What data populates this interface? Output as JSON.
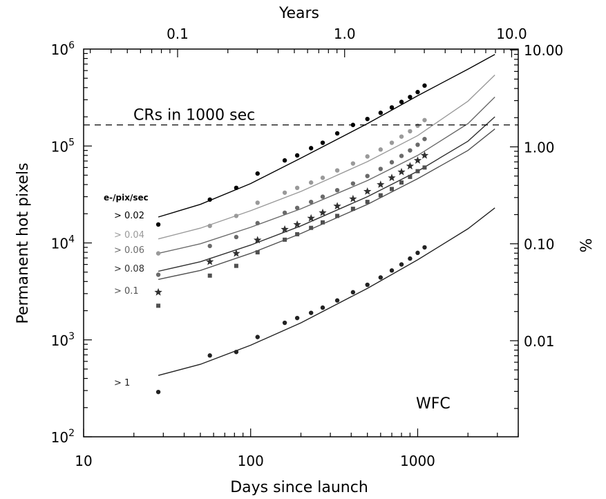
{
  "chart_data": {
    "type": "scatter",
    "title": "",
    "xlabel": "Days since launch",
    "ylabel": "Permanent hot pixels",
    "x2label": "Years",
    "y2label": "%",
    "xscale": "log",
    "yscale": "log",
    "xlim": [
      10,
      4000
    ],
    "ylim": [
      100,
      1000000
    ],
    "x_ticks": [
      {
        "value": 10,
        "label": "10"
      },
      {
        "value": 100,
        "label": "100"
      },
      {
        "value": 1000,
        "label": "1000"
      }
    ],
    "y_ticks": [
      {
        "value": 100,
        "base": "10",
        "exp": "2"
      },
      {
        "value": 1000,
        "base": "10",
        "exp": "3"
      },
      {
        "value": 10000,
        "base": "10",
        "exp": "4"
      },
      {
        "value": 100000,
        "base": "10",
        "exp": "5"
      },
      {
        "value": 1000000,
        "base": "10",
        "exp": "6"
      }
    ],
    "x2_ticks": [
      {
        "value": 0.1,
        "label": "0.1"
      },
      {
        "value": 1.0,
        "label": "1.0"
      },
      {
        "value": 10.0,
        "label": "10.0"
      }
    ],
    "y2_ticks": [
      {
        "value": 0.01,
        "label": "0.01"
      },
      {
        "value": 0.1,
        "label": "0.10"
      },
      {
        "value": 1.0,
        "label": "1.00"
      },
      {
        "value": 10.0,
        "label": "10.00"
      }
    ],
    "y2_to_y_factor": 98000,
    "x2_to_x_factor": 365.25,
    "grid": false,
    "legend_title": "e-/pix/sec",
    "legend_placement": "left",
    "annotation": "WFC",
    "reference_line": {
      "label": "CRs in 1000 sec",
      "y": 165000
    },
    "series": [
      {
        "name": "> 0.02",
        "color": "#000000",
        "marker": "circle",
        "points": [
          [
            28,
            15500
          ],
          [
            57,
            28000
          ],
          [
            82,
            37000
          ],
          [
            110,
            52000
          ],
          [
            160,
            71000
          ],
          [
            190,
            80000
          ],
          [
            230,
            95000
          ],
          [
            270,
            108000
          ],
          [
            330,
            135000
          ],
          [
            410,
            165000
          ],
          [
            500,
            190000
          ],
          [
            600,
            220000
          ],
          [
            700,
            250000
          ],
          [
            800,
            285000
          ],
          [
            900,
            320000
          ],
          [
            1000,
            360000
          ],
          [
            1100,
            420000
          ]
        ],
        "fit": [
          [
            28,
            18500
          ],
          [
            50,
            25000
          ],
          [
            100,
            41000
          ],
          [
            200,
            75000
          ],
          [
            500,
            170000
          ],
          [
            1000,
            330000
          ],
          [
            2000,
            620000
          ],
          [
            2900,
            880000
          ]
        ]
      },
      {
        "name": "> 0.04",
        "color": "#9a9a9a",
        "marker": "circle",
        "points": [
          [
            28,
            7800
          ],
          [
            57,
            15000
          ],
          [
            82,
            19000
          ],
          [
            110,
            26000
          ],
          [
            160,
            33000
          ],
          [
            190,
            37000
          ],
          [
            230,
            42000
          ],
          [
            270,
            47000
          ],
          [
            330,
            56000
          ],
          [
            410,
            66000
          ],
          [
            500,
            78000
          ],
          [
            600,
            92000
          ],
          [
            700,
            108000
          ],
          [
            800,
            125000
          ],
          [
            900,
            142000
          ],
          [
            1000,
            162000
          ],
          [
            1100,
            185000
          ]
        ],
        "fit": [
          [
            28,
            11000
          ],
          [
            50,
            14200
          ],
          [
            100,
            21500
          ],
          [
            200,
            34000
          ],
          [
            500,
            69000
          ],
          [
            1000,
            128000
          ],
          [
            2000,
            290000
          ],
          [
            2900,
            540000
          ]
        ]
      },
      {
        "name": "> 0.06",
        "color": "#6a6a6a",
        "marker": "circle",
        "points": [
          [
            28,
            4700
          ],
          [
            57,
            9300
          ],
          [
            82,
            11500
          ],
          [
            110,
            16000
          ],
          [
            160,
            20500
          ],
          [
            190,
            23000
          ],
          [
            230,
            26500
          ],
          [
            270,
            30000
          ],
          [
            330,
            35000
          ],
          [
            410,
            41000
          ],
          [
            500,
            49000
          ],
          [
            600,
            58000
          ],
          [
            700,
            68000
          ],
          [
            800,
            79000
          ],
          [
            900,
            90000
          ],
          [
            1000,
            103000
          ],
          [
            1100,
            118000
          ]
        ],
        "fit": [
          [
            28,
            7800
          ],
          [
            50,
            9800
          ],
          [
            100,
            14500
          ],
          [
            200,
            22500
          ],
          [
            500,
            44000
          ],
          [
            1000,
            80000
          ],
          [
            2000,
            170000
          ],
          [
            2900,
            320000
          ]
        ]
      },
      {
        "name": "> 0.08",
        "color": "#303030",
        "marker": "star",
        "points": [
          [
            28,
            3100
          ],
          [
            57,
            6400
          ],
          [
            82,
            7800
          ],
          [
            110,
            10700
          ],
          [
            160,
            13800
          ],
          [
            190,
            15500
          ],
          [
            230,
            18000
          ],
          [
            270,
            20500
          ],
          [
            330,
            24000
          ],
          [
            410,
            28500
          ],
          [
            500,
            34000
          ],
          [
            600,
            40000
          ],
          [
            700,
            47000
          ],
          [
            800,
            54000
          ],
          [
            900,
            62000
          ],
          [
            1000,
            71000
          ],
          [
            1100,
            80000
          ]
        ],
        "fit": [
          [
            28,
            5100
          ],
          [
            50,
            6400
          ],
          [
            100,
            9500
          ],
          [
            200,
            15000
          ],
          [
            500,
            30000
          ],
          [
            1000,
            55000
          ],
          [
            2000,
            112000
          ],
          [
            2900,
            200000
          ]
        ]
      },
      {
        "name": "> 0.1",
        "color": "#505050",
        "marker": "square",
        "points": [
          [
            28,
            2250
          ],
          [
            57,
            4600
          ],
          [
            82,
            5800
          ],
          [
            110,
            8000
          ],
          [
            160,
            10800
          ],
          [
            190,
            12300
          ],
          [
            230,
            14300
          ],
          [
            270,
            16300
          ],
          [
            330,
            19000
          ],
          [
            410,
            22500
          ],
          [
            500,
            26500
          ],
          [
            600,
            31000
          ],
          [
            700,
            36000
          ],
          [
            800,
            42000
          ],
          [
            900,
            48000
          ],
          [
            1000,
            55000
          ],
          [
            1100,
            60000
          ]
        ],
        "fit": [
          [
            28,
            4200
          ],
          [
            50,
            5200
          ],
          [
            100,
            7800
          ],
          [
            200,
            12500
          ],
          [
            500,
            25000
          ],
          [
            1000,
            46000
          ],
          [
            2000,
            90000
          ],
          [
            2900,
            150000
          ]
        ]
      },
      {
        "name": "> 1",
        "color": "#222222",
        "marker": "circle",
        "points": [
          [
            28,
            290
          ],
          [
            57,
            690
          ],
          [
            82,
            750
          ],
          [
            110,
            1070
          ],
          [
            160,
            1500
          ],
          [
            190,
            1680
          ],
          [
            230,
            1900
          ],
          [
            270,
            2150
          ],
          [
            330,
            2550
          ],
          [
            410,
            3100
          ],
          [
            500,
            3700
          ],
          [
            600,
            4400
          ],
          [
            700,
            5200
          ],
          [
            800,
            6000
          ],
          [
            900,
            6900
          ],
          [
            1000,
            7900
          ],
          [
            1100,
            9000
          ]
        ],
        "fit": [
          [
            28,
            430
          ],
          [
            50,
            560
          ],
          [
            100,
            880
          ],
          [
            200,
            1500
          ],
          [
            500,
            3400
          ],
          [
            1000,
            6700
          ],
          [
            2000,
            14000
          ],
          [
            2900,
            23000
          ]
        ]
      }
    ]
  }
}
